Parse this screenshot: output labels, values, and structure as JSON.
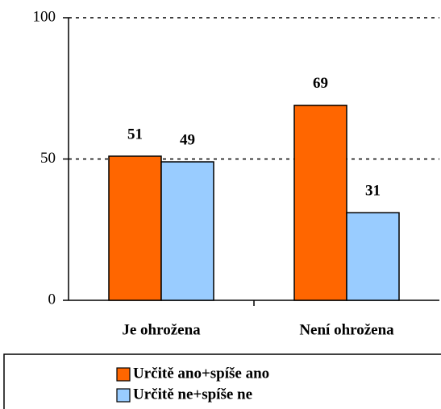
{
  "chart_data": {
    "type": "bar",
    "categories": [
      "Je ohrožena",
      "Není ohrožena"
    ],
    "series": [
      {
        "name": "Určitě ano+spíše ano",
        "color": "#ff6600",
        "values": [
          51,
          69
        ]
      },
      {
        "name": "Určitě ne+spíše ne",
        "color": "#99ccff",
        "values": [
          49,
          31
        ]
      }
    ],
    "ylim": [
      0,
      100
    ],
    "yticks": [
      0,
      50,
      100
    ],
    "grid": true,
    "legend": "bottom"
  }
}
